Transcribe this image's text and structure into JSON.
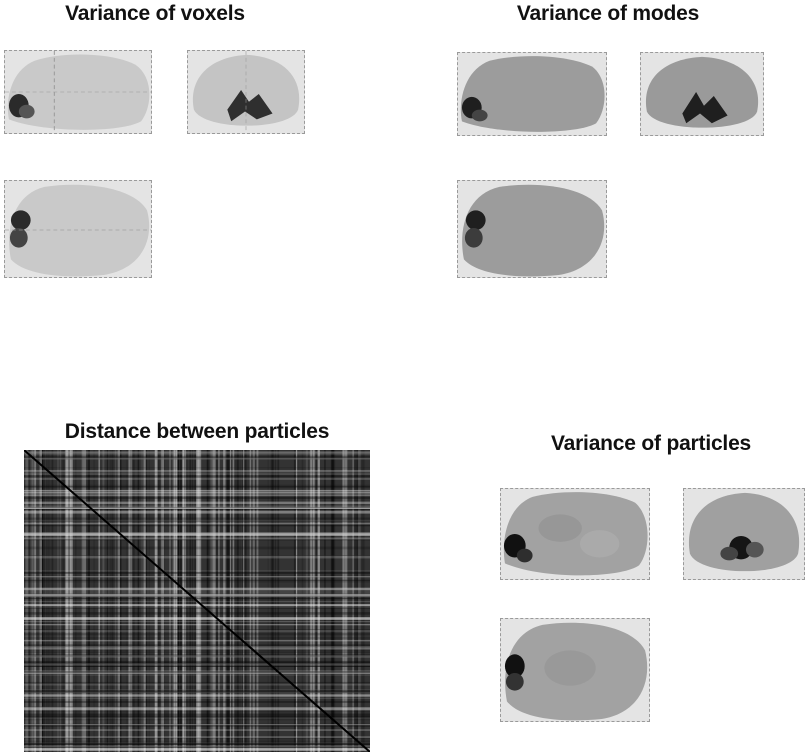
{
  "panels": {
    "voxels": {
      "title": "Variance of voxels"
    },
    "modes": {
      "title": "Variance of modes"
    },
    "distance": {
      "title": "Distance between particles"
    },
    "particles": {
      "title": "Variance of particles"
    }
  },
  "colors": {
    "voxel_brain": "#c9c9c9",
    "mode_brain": "#9c9c9c",
    "particle_brain": "#a2a2a2",
    "view_background": "#e4e4e4",
    "matrix_dark": "#1e1e1e"
  }
}
